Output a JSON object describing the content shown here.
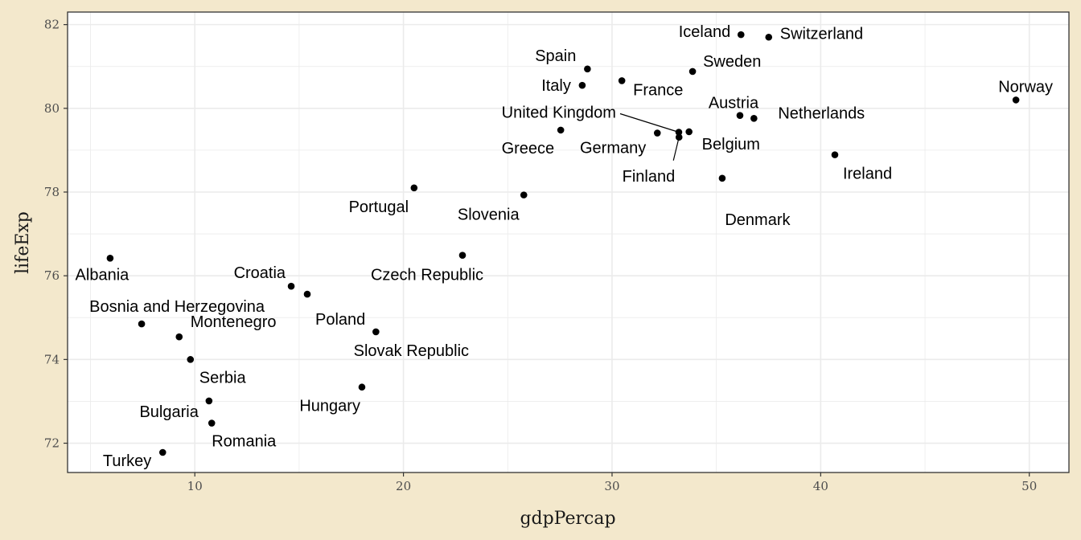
{
  "chart_data": {
    "type": "scatter",
    "xlabel": "gdpPercap",
    "ylabel": "lifeExp",
    "xlim": [
      3.9,
      51.9
    ],
    "ylim": [
      71.3,
      82.3
    ],
    "x_ticks": [
      10,
      20,
      30,
      40,
      50
    ],
    "y_ticks": [
      72,
      74,
      76,
      78,
      80,
      82
    ],
    "grid": true,
    "colors": {
      "background": "#f3e8cc",
      "panel": "#ffffff",
      "grid": "#ebebeb",
      "point": "#000000"
    },
    "points": [
      {
        "label": "Albania",
        "x": 5.94,
        "y": 76.42
      },
      {
        "label": "Austria",
        "x": 36.13,
        "y": 79.83
      },
      {
        "label": "Belgium",
        "x": 33.69,
        "y": 79.44
      },
      {
        "label": "Bosnia and Herzegovina",
        "x": 7.45,
        "y": 74.85
      },
      {
        "label": "Bulgaria",
        "x": 10.68,
        "y": 73.01
      },
      {
        "label": "Croatia",
        "x": 14.62,
        "y": 75.75
      },
      {
        "label": "Czech Republic",
        "x": 22.83,
        "y": 76.49
      },
      {
        "label": "Denmark",
        "x": 35.28,
        "y": 78.33
      },
      {
        "label": "Finland",
        "x": 33.21,
        "y": 79.31
      },
      {
        "label": "France",
        "x": 30.47,
        "y": 80.66
      },
      {
        "label": "Germany",
        "x": 32.17,
        "y": 79.41
      },
      {
        "label": "Greece",
        "x": 27.54,
        "y": 79.48
      },
      {
        "label": "Hungary",
        "x": 18.01,
        "y": 73.34
      },
      {
        "label": "Iceland",
        "x": 36.18,
        "y": 81.76
      },
      {
        "label": "Ireland",
        "x": 40.68,
        "y": 78.89
      },
      {
        "label": "Italy",
        "x": 28.57,
        "y": 80.55
      },
      {
        "label": "Montenegro",
        "x": 9.25,
        "y": 74.54
      },
      {
        "label": "Netherlands",
        "x": 36.8,
        "y": 79.76
      },
      {
        "label": "Norway",
        "x": 49.36,
        "y": 80.2
      },
      {
        "label": "Poland",
        "x": 15.39,
        "y": 75.56
      },
      {
        "label": "Portugal",
        "x": 20.51,
        "y": 78.1
      },
      {
        "label": "Romania",
        "x": 10.81,
        "y": 72.48
      },
      {
        "label": "Serbia",
        "x": 9.79,
        "y": 74.0
      },
      {
        "label": "Slovak Republic",
        "x": 18.68,
        "y": 74.66
      },
      {
        "label": "Slovenia",
        "x": 25.77,
        "y": 77.93
      },
      {
        "label": "Spain",
        "x": 28.82,
        "y": 80.94
      },
      {
        "label": "Sweden",
        "x": 33.86,
        "y": 80.88
      },
      {
        "label": "Switzerland",
        "x": 37.51,
        "y": 81.7
      },
      {
        "label": "Turkey",
        "x": 8.46,
        "y": 71.78
      },
      {
        "label": "United Kingdom",
        "x": 33.2,
        "y": 79.43
      }
    ]
  }
}
